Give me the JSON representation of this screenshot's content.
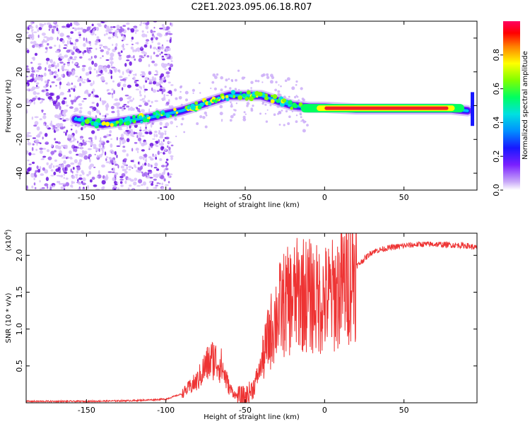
{
  "title": "C2E1.2023.095.06.18.R07",
  "chart_data": [
    {
      "type": "heatmap",
      "name": "spectrogram",
      "xlabel": "Height of straight line (km)",
      "ylabel": "Frequency (Hz)",
      "xlim": [
        -188,
        96
      ],
      "ylim": [
        -50,
        50
      ],
      "xticks": [
        -150,
        -100,
        -50,
        0,
        50
      ],
      "yticks": [
        -40,
        -20,
        0,
        20,
        40
      ],
      "colorbar": {
        "label": "Normalized spectral amplitude",
        "range": [
          0,
          1
        ],
        "ticks": [
          0.0,
          0.2,
          0.4,
          0.6,
          0.8
        ]
      },
      "ridge": [
        {
          "x": -157,
          "y": -8
        },
        {
          "x": -140,
          "y": -11
        },
        {
          "x": -125,
          "y": -9
        },
        {
          "x": -110,
          "y": -7
        },
        {
          "x": -100,
          "y": -5
        },
        {
          "x": -90,
          "y": -3
        },
        {
          "x": -80,
          "y": 0
        },
        {
          "x": -70,
          "y": 3
        },
        {
          "x": -60,
          "y": 6
        },
        {
          "x": -50,
          "y": 6
        },
        {
          "x": -40,
          "y": 6
        },
        {
          "x": -30,
          "y": 3
        },
        {
          "x": -20,
          "y": 0
        },
        {
          "x": -10,
          "y": -1
        },
        {
          "x": 0,
          "y": -1
        },
        {
          "x": 20,
          "y": -2
        },
        {
          "x": 50,
          "y": -2
        },
        {
          "x": 80,
          "y": -2
        },
        {
          "x": 90,
          "y": -3
        }
      ]
    },
    {
      "type": "line",
      "name": "snr",
      "xlabel": "Height of straight line (km)",
      "ylabel": "SNR (10 * v/v)",
      "yscale_label": "(x10",
      "yscale_exp": "4",
      "xlim": [
        -188,
        96
      ],
      "ylim": [
        0,
        2.3
      ],
      "xticks": [
        -150,
        -100,
        -50,
        0,
        50
      ],
      "yticks": [
        0.5,
        1.0,
        1.5,
        2.0
      ],
      "envelope": [
        {
          "x": -188,
          "y": 0.02
        },
        {
          "x": -150,
          "y": 0.02
        },
        {
          "x": -120,
          "y": 0.03
        },
        {
          "x": -100,
          "y": 0.05
        },
        {
          "x": -90,
          "y": 0.12
        },
        {
          "x": -80,
          "y": 0.3
        },
        {
          "x": -75,
          "y": 0.5
        },
        {
          "x": -70,
          "y": 0.6
        },
        {
          "x": -65,
          "y": 0.5
        },
        {
          "x": -60,
          "y": 0.2
        },
        {
          "x": -55,
          "y": 0.08
        },
        {
          "x": -50,
          "y": 0.08
        },
        {
          "x": -45,
          "y": 0.2
        },
        {
          "x": -40,
          "y": 0.5
        },
        {
          "x": -35,
          "y": 0.9
        },
        {
          "x": -30,
          "y": 1.2
        },
        {
          "x": -25,
          "y": 1.35
        },
        {
          "x": -20,
          "y": 1.4
        },
        {
          "x": -15,
          "y": 1.5
        },
        {
          "x": -10,
          "y": 1.45
        },
        {
          "x": -5,
          "y": 1.4
        },
        {
          "x": 0,
          "y": 1.4
        },
        {
          "x": 5,
          "y": 1.45
        },
        {
          "x": 10,
          "y": 1.55
        },
        {
          "x": 15,
          "y": 1.7
        },
        {
          "x": 20,
          "y": 1.85
        },
        {
          "x": 25,
          "y": 1.95
        },
        {
          "x": 30,
          "y": 2.05
        },
        {
          "x": 40,
          "y": 2.1
        },
        {
          "x": 50,
          "y": 2.13
        },
        {
          "x": 60,
          "y": 2.15
        },
        {
          "x": 70,
          "y": 2.15
        },
        {
          "x": 80,
          "y": 2.14
        },
        {
          "x": 90,
          "y": 2.13
        },
        {
          "x": 96,
          "y": 2.1
        }
      ]
    }
  ],
  "colors": {
    "line": "#ee3333",
    "ridge_core": "#ee2222",
    "cloud": "#8a2be2"
  }
}
